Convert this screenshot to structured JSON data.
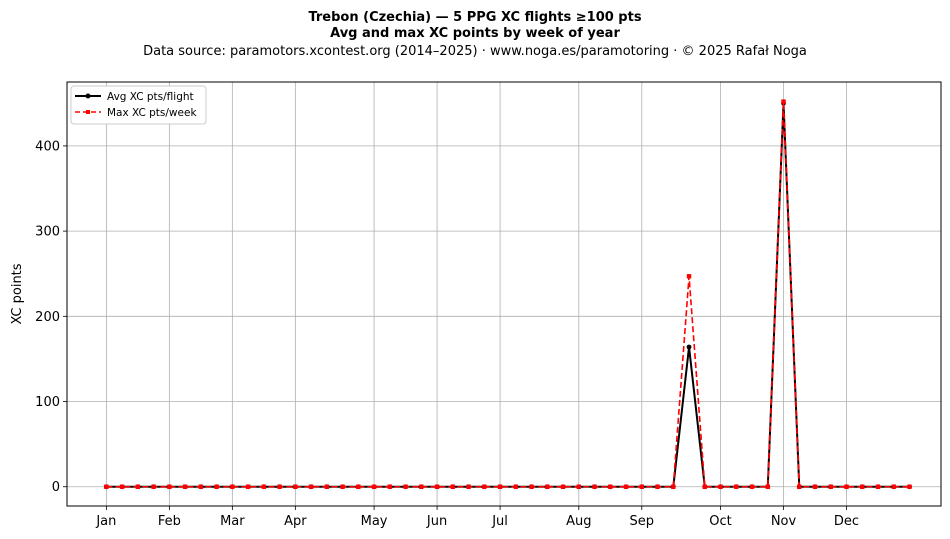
{
  "chart_data": {
    "type": "line",
    "title": "Trebon (Czechia)  —  5 PPG XC flights ≥100 pts",
    "subtitle": "Avg and max XC points by week of year",
    "source": "Data source: paramotors.xcontest.org (2014–2025)  ·  www.noga.es/paramotoring  ·  © 2025 Rafał Noga",
    "xlabel": "",
    "ylabel": "XC points",
    "xlim": [
      -1.5,
      54
    ],
    "ylim": [
      -22.6,
      475
    ],
    "yticks": [
      0,
      100,
      200,
      300,
      400
    ],
    "month_ticks": [
      {
        "label": "Jan",
        "week": 1
      },
      {
        "label": "Feb",
        "week": 5
      },
      {
        "label": "Mar",
        "week": 9
      },
      {
        "label": "Apr",
        "week": 13
      },
      {
        "label": "May",
        "week": 18
      },
      {
        "label": "Jun",
        "week": 22
      },
      {
        "label": "Jul",
        "week": 26
      },
      {
        "label": "Aug",
        "week": 31
      },
      {
        "label": "Sep",
        "week": 35
      },
      {
        "label": "Oct",
        "week": 40
      },
      {
        "label": "Nov",
        "week": 44
      },
      {
        "label": "Dec",
        "week": 48
      }
    ],
    "grid": true,
    "legend_position": "top-left",
    "x": [
      1,
      2,
      3,
      4,
      5,
      6,
      7,
      8,
      9,
      10,
      11,
      12,
      13,
      14,
      15,
      16,
      17,
      18,
      19,
      20,
      21,
      22,
      23,
      24,
      25,
      26,
      27,
      28,
      29,
      30,
      31,
      32,
      33,
      34,
      35,
      36,
      37,
      38,
      39,
      40,
      41,
      42,
      43,
      44,
      45,
      46,
      47,
      48,
      49,
      50,
      51,
      52
    ],
    "series": [
      {
        "name": "Avg XC pts/flight",
        "color": "#000000",
        "style": "solid",
        "marker": "circle",
        "values": [
          0,
          0,
          0,
          0,
          0,
          0,
          0,
          0,
          0,
          0,
          0,
          0,
          0,
          0,
          0,
          0,
          0,
          0,
          0,
          0,
          0,
          0,
          0,
          0,
          0,
          0,
          0,
          0,
          0,
          0,
          0,
          0,
          0,
          0,
          0,
          0,
          0,
          164,
          0,
          0,
          0,
          0,
          0,
          450,
          0,
          0,
          0,
          0,
          0,
          0,
          0,
          0
        ]
      },
      {
        "name": "Max XC pts/week",
        "color": "#ff0000",
        "style": "dashed",
        "marker": "square",
        "values": [
          0,
          0,
          0,
          0,
          0,
          0,
          0,
          0,
          0,
          0,
          0,
          0,
          0,
          0,
          0,
          0,
          0,
          0,
          0,
          0,
          0,
          0,
          0,
          0,
          0,
          0,
          0,
          0,
          0,
          0,
          0,
          0,
          0,
          0,
          0,
          0,
          0,
          247,
          0,
          0,
          0,
          0,
          0,
          452,
          0,
          0,
          0,
          0,
          0,
          0,
          0,
          0
        ]
      }
    ]
  }
}
